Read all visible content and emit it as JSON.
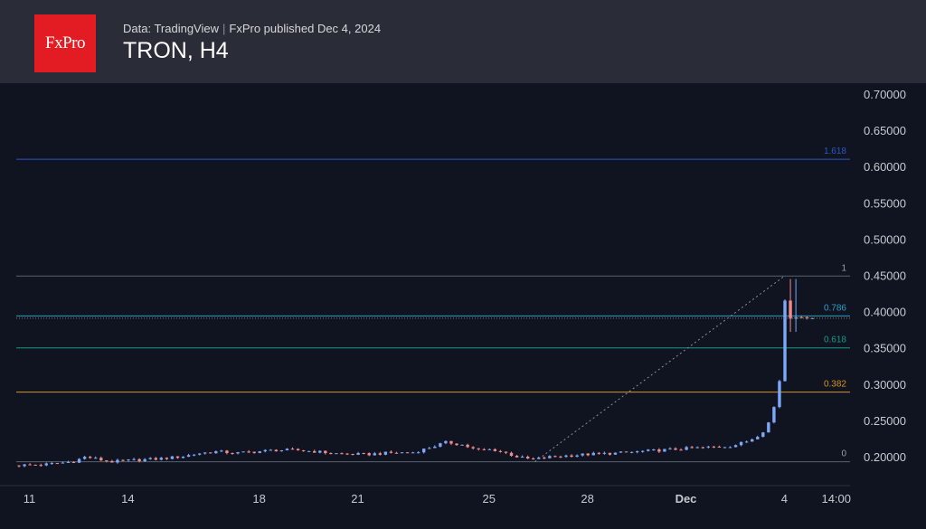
{
  "header": {
    "logo_text": "FxPro",
    "source": "Data: TradingView",
    "publisher": "FxPro published Dec 4, 2024",
    "title": "TRON, H4"
  },
  "colors": {
    "up": "#7fa7f8",
    "down": "#f28b8b",
    "background": "#0f1420",
    "header": "#2a2d37",
    "fib_1618": "#2f55c9",
    "fib_1": "#5b606d",
    "fib_0786": "#2b9fc1",
    "fib_0618": "#1a9980",
    "fib_0382": "#d49524",
    "fib_0": "#5b606d"
  },
  "chart_data": {
    "type": "candlestick",
    "title": "TRON, H4",
    "ylim": [
      0.18,
      0.7
    ],
    "y_ticks": [
      "0.70000",
      "0.65000",
      "0.60000",
      "0.55000",
      "0.50000",
      "0.45000",
      "0.40000",
      "0.35000",
      "0.30000",
      "0.25000",
      "0.20000"
    ],
    "x_ticks": [
      "11",
      "14",
      "18",
      "21",
      "25",
      "28",
      "Dec",
      "4",
      "14:00"
    ],
    "x_tick_days": [
      11,
      14,
      18,
      21,
      25,
      28,
      31,
      34,
      35.58
    ],
    "xlim_days": [
      10.6,
      36.0
    ],
    "last_price": 0.391,
    "fib_levels": [
      {
        "label": "1.618",
        "value": 0.61
      },
      {
        "label": "1",
        "value": 0.449
      },
      {
        "label": "0.786",
        "value": 0.394
      },
      {
        "label": "0.618",
        "value": 0.35
      },
      {
        "label": "0.382",
        "value": 0.289
      },
      {
        "label": "0",
        "value": 0.193
      }
    ],
    "trend_line": {
      "from": [
        26.4,
        0.193
      ],
      "to": [
        34.0,
        0.449
      ]
    },
    "anchor_points": [
      [
        10.6,
        0.188
      ],
      [
        11.5,
        0.189
      ],
      [
        12.4,
        0.193
      ],
      [
        12.8,
        0.2
      ],
      [
        13.2,
        0.196
      ],
      [
        13.6,
        0.193
      ],
      [
        14.2,
        0.195
      ],
      [
        15.0,
        0.197
      ],
      [
        15.7,
        0.2
      ],
      [
        16.3,
        0.205
      ],
      [
        16.8,
        0.207
      ],
      [
        17.4,
        0.205
      ],
      [
        18.0,
        0.207
      ],
      [
        18.6,
        0.209
      ],
      [
        19.2,
        0.209
      ],
      [
        19.8,
        0.207
      ],
      [
        20.5,
        0.204
      ],
      [
        21.3,
        0.203
      ],
      [
        22.0,
        0.205
      ],
      [
        22.8,
        0.206
      ],
      [
        23.3,
        0.213
      ],
      [
        23.8,
        0.22
      ],
      [
        24.3,
        0.216
      ],
      [
        24.7,
        0.209
      ],
      [
        25.2,
        0.21
      ],
      [
        25.6,
        0.205
      ],
      [
        26.0,
        0.199
      ],
      [
        26.4,
        0.196
      ],
      [
        27.0,
        0.2
      ],
      [
        28.0,
        0.203
      ],
      [
        29.0,
        0.205
      ],
      [
        30.0,
        0.208
      ],
      [
        31.0,
        0.211
      ],
      [
        31.8,
        0.213
      ],
      [
        32.5,
        0.215
      ],
      [
        33.0,
        0.222
      ],
      [
        33.4,
        0.233
      ],
      [
        33.6,
        0.247
      ],
      [
        33.75,
        0.262
      ],
      [
        33.85,
        0.3
      ],
      [
        33.95,
        0.305
      ],
      [
        34.0,
        0.432
      ],
      [
        34.25,
        0.39
      ],
      [
        34.5,
        0.393
      ],
      [
        34.75,
        0.391
      ]
    ]
  }
}
